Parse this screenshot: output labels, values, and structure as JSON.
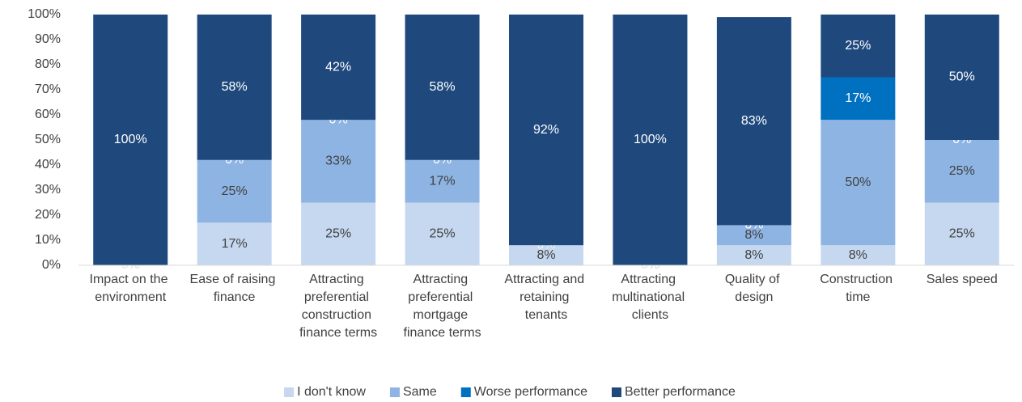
{
  "chart_data": {
    "type": "stacked_bar",
    "categories": [
      "Impact on the environment",
      "Ease of raising finance",
      "Attracting preferential construction finance terms",
      "Attracting preferential mortgage finance terms",
      "Attracting and retaining tenants",
      "Attracting multinational clients",
      "Quality of design",
      "Construction time",
      "Sales speed"
    ],
    "series": [
      {
        "name": "I don't know",
        "color": "#c6d8f0",
        "values": [
          0,
          17,
          25,
          25,
          8,
          0,
          8,
          8,
          25
        ],
        "value_labels": [
          "0%",
          "17%",
          "25%",
          "25%",
          "8%",
          "0%",
          "8%",
          "8%",
          "25%"
        ]
      },
      {
        "name": "Same",
        "color": "#8eb4e3",
        "values": [
          0,
          25,
          33,
          17,
          0,
          0,
          8,
          50,
          25
        ],
        "value_labels": [
          "0%",
          "25%",
          "33%",
          "17%",
          "0%",
          "0%",
          "8%",
          "50%",
          "25%"
        ]
      },
      {
        "name": "Worse performance",
        "color": "#0070c0",
        "values": [
          0,
          0,
          0,
          0,
          0,
          0,
          0,
          17,
          0
        ],
        "value_labels": [
          "0%",
          "0%",
          "0%",
          "0%",
          "0%",
          "0%",
          "0%",
          "17%",
          "0%"
        ]
      },
      {
        "name": "Better performance",
        "color": "#1f497d",
        "values": [
          100,
          58,
          42,
          58,
          92,
          100,
          83,
          25,
          50
        ],
        "value_labels": [
          "100%",
          "58%",
          "42%",
          "58%",
          "92%",
          "100%",
          "83%",
          "25%",
          "50%"
        ]
      }
    ],
    "ylim": [
      0,
      100
    ],
    "yticks": [
      {
        "value": 0,
        "label": "0%"
      },
      {
        "value": 10,
        "label": "10%"
      },
      {
        "value": 20,
        "label": "20%"
      },
      {
        "value": 30,
        "label": "30%"
      },
      {
        "value": 40,
        "label": "40%"
      },
      {
        "value": 50,
        "label": "50%"
      },
      {
        "value": 60,
        "label": "60%"
      },
      {
        "value": 70,
        "label": "70%"
      },
      {
        "value": 80,
        "label": "80%"
      },
      {
        "value": 90,
        "label": "90%"
      },
      {
        "value": 100,
        "label": "100%"
      }
    ],
    "grid": false,
    "legend": "bottom"
  }
}
